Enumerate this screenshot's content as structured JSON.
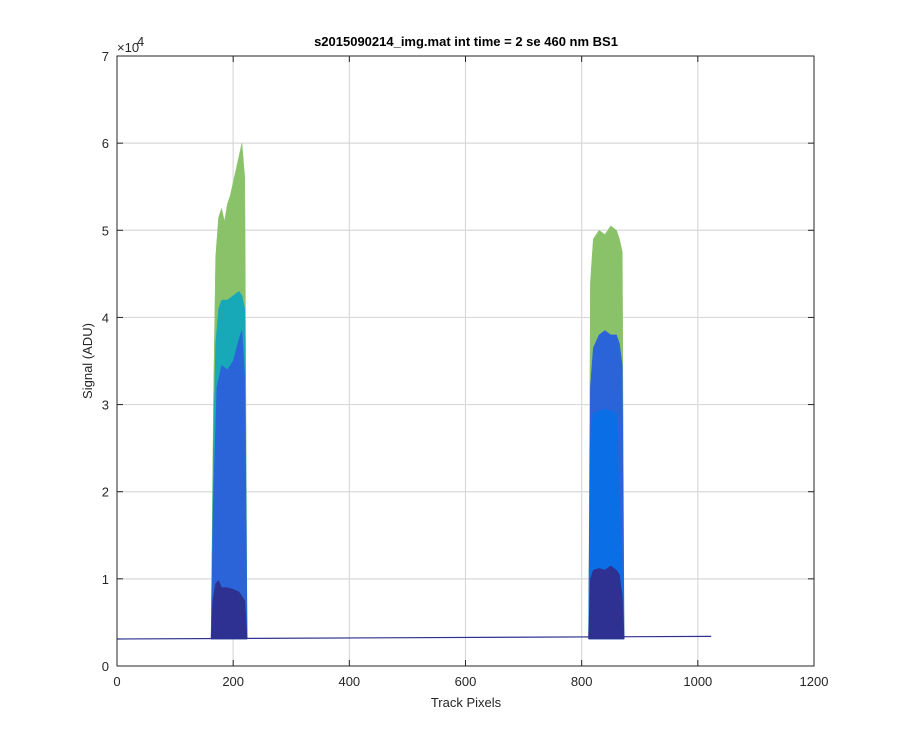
{
  "chart_data": {
    "type": "area",
    "title": "s2015090214_img.mat int time = 2 se  460 nm BS1",
    "xlabel": "Track Pixels",
    "ylabel": "Signal (ADU)",
    "xlim": [
      0,
      1200
    ],
    "ylim": [
      0,
      70000
    ],
    "x_ticks": [
      0,
      200,
      400,
      600,
      800,
      1000,
      1200
    ],
    "y_ticks": [
      0,
      1,
      2,
      3,
      4,
      5,
      6,
      7
    ],
    "y_exponent_label": "×10",
    "y_exponent_power": "4",
    "y_tick_multiplier": 10000,
    "grid": true,
    "baseline": {
      "x": [
        0,
        1023
      ],
      "y": [
        3100,
        3400
      ]
    },
    "series": [
      {
        "color": "#8ac26a",
        "x": [
          162,
          166,
          170,
          175,
          180,
          185,
          190,
          195,
          200,
          205,
          210,
          215,
          220,
          224,
          812,
          815,
          820,
          830,
          840,
          850,
          860,
          865,
          870,
          873
        ],
        "y": [
          3100,
          30000,
          47000,
          51500,
          52500,
          51000,
          53000,
          54000,
          55500,
          57000,
          58500,
          60000,
          56000,
          3200,
          3300,
          44000,
          49000,
          50000,
          49500,
          50500,
          50000,
          49000,
          47500,
          3300
        ]
      },
      {
        "color": "#18a9b8",
        "x": [
          162,
          166,
          170,
          175,
          180,
          190,
          200,
          210,
          215,
          220,
          224
        ],
        "y": [
          3100,
          25000,
          37000,
          41000,
          42000,
          42000,
          42500,
          43000,
          42500,
          41000,
          3200
        ]
      },
      {
        "color": "#2a64d8",
        "x": [
          162,
          166,
          172,
          180,
          190,
          200,
          210,
          215,
          220,
          224,
          812,
          815,
          820,
          830,
          840,
          850,
          860,
          865,
          870,
          873
        ],
        "y": [
          3100,
          19000,
          32000,
          34500,
          34000,
          35000,
          37500,
          38500,
          33000,
          3200,
          3300,
          32000,
          36500,
          38000,
          38500,
          38000,
          38000,
          37000,
          34500,
          3300
        ]
      },
      {
        "color": "#0a6fe6",
        "x": [
          812,
          815,
          820,
          840,
          860,
          873
        ],
        "y": [
          3300,
          26000,
          29000,
          29500,
          29000,
          3300
        ]
      },
      {
        "color": "#2e3191",
        "x": [
          162,
          165,
          170,
          175,
          180,
          190,
          200,
          210,
          215,
          220,
          224,
          812,
          815,
          820,
          830,
          840,
          850,
          860,
          865,
          870,
          873
        ],
        "y": [
          3100,
          7500,
          9500,
          9800,
          9000,
          9000,
          8800,
          8500,
          8000,
          7500,
          3200,
          3300,
          10000,
          11000,
          11200,
          11000,
          11500,
          11000,
          10500,
          8000,
          3300
        ]
      }
    ]
  }
}
